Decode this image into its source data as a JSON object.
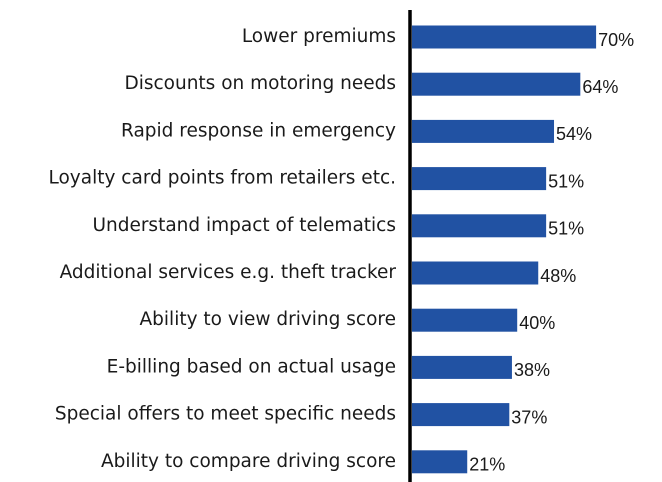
{
  "chart_data": {
    "type": "bar",
    "orientation": "horizontal",
    "categories": [
      "Lower premiums",
      "Discounts on motoring needs",
      "Rapid response in emergency",
      "Loyalty card points from retailers etc.",
      "Understand impact of telematics",
      "Additional services  e.g. theft tracker",
      "Ability to view driving score",
      "E-billing based on actual usage",
      "Special offers to meet specific needs",
      "Ability to compare driving score"
    ],
    "values": [
      70,
      64,
      54,
      51,
      51,
      48,
      40,
      38,
      37,
      21
    ],
    "value_labels": [
      "70%",
      "64%",
      "54%",
      "51%",
      "51%",
      "48%",
      "40%",
      "38%",
      "37%",
      "21%"
    ],
    "color": "#2152a3"
  }
}
